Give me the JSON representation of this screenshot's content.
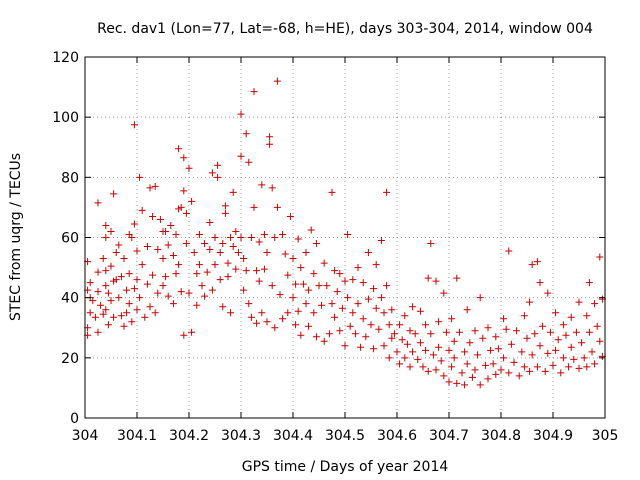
{
  "chart_data": {
    "type": "scatter",
    "title": "Rec. dav1 (Lon=77, Lat=-68, h=HE), days 303-304, 2014, window 004",
    "xlabel": "GPS time / Days of year 2014",
    "ylabel": "STEC from uqrg / TECUs",
    "xlim": [
      304,
      305
    ],
    "ylim": [
      0,
      120
    ],
    "x_ticks": [
      304,
      304.1,
      304.2,
      304.3,
      304.4,
      304.5,
      304.6,
      304.7,
      304.8,
      304.9,
      305
    ],
    "x_tick_labels": [
      "304",
      "304.1",
      "304.2",
      "304.3",
      "304.4",
      "304.5",
      "304.6",
      "304.7",
      "304.8",
      "304.9",
      "305"
    ],
    "y_ticks": [
      0,
      20,
      40,
      60,
      80,
      100,
      120
    ],
    "y_tick_labels": [
      "0",
      "20",
      "40",
      "60",
      "80",
      "100",
      "120"
    ],
    "marker": "plus",
    "marker_color": "#cc0000",
    "grid": true,
    "points": [
      [
        304.005,
        52.0
      ],
      [
        304.005,
        42.5
      ],
      [
        304.005,
        30.0
      ],
      [
        304.005,
        27.5
      ],
      [
        304.01,
        45.0
      ],
      [
        304.01,
        40.0
      ],
      [
        304.01,
        35.0
      ],
      [
        304.015,
        39.0
      ],
      [
        304.02,
        33.5
      ],
      [
        304.025,
        71.5
      ],
      [
        304.025,
        48.5
      ],
      [
        304.025,
        42.0
      ],
      [
        304.025,
        28.5
      ],
      [
        304.03,
        37.5
      ],
      [
        304.035,
        53.0
      ],
      [
        304.035,
        34.5
      ],
      [
        304.04,
        64.0
      ],
      [
        304.04,
        60.0
      ],
      [
        304.04,
        49.0
      ],
      [
        304.04,
        44.0
      ],
      [
        304.04,
        36.0
      ],
      [
        304.045,
        41.5
      ],
      [
        304.045,
        31.0
      ],
      [
        304.05,
        62.0
      ],
      [
        304.05,
        50.5
      ],
      [
        304.05,
        39.0
      ],
      [
        304.055,
        74.5
      ],
      [
        304.055,
        45.5
      ],
      [
        304.055,
        33.5
      ],
      [
        304.06,
        55.0
      ],
      [
        304.06,
        46.0
      ],
      [
        304.065,
        57.5
      ],
      [
        304.065,
        40.0
      ],
      [
        304.07,
        47.0
      ],
      [
        304.07,
        34.0
      ],
      [
        304.075,
        53.0
      ],
      [
        304.075,
        30.5
      ],
      [
        304.08,
        42.5
      ],
      [
        304.08,
        35.0
      ],
      [
        304.085,
        61.0
      ],
      [
        304.085,
        48.0
      ],
      [
        304.085,
        38.0
      ],
      [
        304.09,
        60.0
      ],
      [
        304.09,
        32.0
      ],
      [
        304.095,
        97.5
      ],
      [
        304.095,
        64.5
      ],
      [
        304.095,
        43.0
      ],
      [
        304.1,
        55.5
      ],
      [
        304.1,
        46.0
      ],
      [
        304.1,
        36.0
      ],
      [
        304.105,
        80.0
      ],
      [
        304.105,
        40.0
      ],
      [
        304.11,
        69.0
      ],
      [
        304.11,
        51.0
      ],
      [
        304.115,
        33.5
      ],
      [
        304.12,
        57.0
      ],
      [
        304.12,
        44.5
      ],
      [
        304.125,
        76.5
      ],
      [
        304.125,
        37.0
      ],
      [
        304.13,
        67.0
      ],
      [
        304.13,
        47.5
      ],
      [
        304.135,
        77.0
      ],
      [
        304.135,
        35.0
      ],
      [
        304.14,
        56.0
      ],
      [
        304.14,
        41.5
      ],
      [
        304.145,
        66.0
      ],
      [
        304.15,
        62.0
      ],
      [
        304.15,
        53.0
      ],
      [
        304.15,
        44.0
      ],
      [
        304.155,
        62.0
      ],
      [
        304.155,
        47.0
      ],
      [
        304.16,
        57.5
      ],
      [
        304.16,
        40.5
      ],
      [
        304.165,
        64.0
      ],
      [
        304.17,
        54.0
      ],
      [
        304.17,
        38.0
      ],
      [
        304.175,
        61.0
      ],
      [
        304.175,
        48.0
      ],
      [
        304.18,
        89.5
      ],
      [
        304.18,
        69.5
      ],
      [
        304.18,
        51.0
      ],
      [
        304.185,
        70.0
      ],
      [
        304.185,
        42.0
      ],
      [
        304.19,
        86.5
      ],
      [
        304.19,
        75.5
      ],
      [
        304.19,
        27.5
      ],
      [
        304.195,
        68.0
      ],
      [
        304.195,
        58.0
      ],
      [
        304.2,
        83.0
      ],
      [
        304.2,
        41.5
      ],
      [
        304.205,
        72.0
      ],
      [
        304.205,
        28.5
      ],
      [
        304.21,
        55.0
      ],
      [
        304.215,
        48.0
      ],
      [
        304.215,
        37.5
      ],
      [
        304.22,
        61.0
      ],
      [
        304.22,
        51.0
      ],
      [
        304.225,
        44.0
      ],
      [
        304.23,
        58.0
      ],
      [
        304.23,
        40.5
      ],
      [
        304.235,
        48.5
      ],
      [
        304.24,
        65.0
      ],
      [
        304.24,
        56.0
      ],
      [
        304.245,
        81.5
      ],
      [
        304.245,
        42.5
      ],
      [
        304.25,
        60.0
      ],
      [
        304.25,
        51.0
      ],
      [
        304.255,
        80.0
      ],
      [
        304.255,
        84.0
      ],
      [
        304.26,
        55.0
      ],
      [
        304.26,
        46.0
      ],
      [
        304.265,
        58.0
      ],
      [
        304.265,
        37.0
      ],
      [
        304.27,
        70.5
      ],
      [
        304.27,
        68.0
      ],
      [
        304.275,
        51.5
      ],
      [
        304.275,
        47.0
      ],
      [
        304.28,
        60.0
      ],
      [
        304.28,
        35.0
      ],
      [
        304.285,
        75.0
      ],
      [
        304.285,
        57.0
      ],
      [
        304.29,
        62.0
      ],
      [
        304.29,
        49.5
      ],
      [
        304.295,
        55.0
      ],
      [
        304.3,
        101.0
      ],
      [
        304.3,
        87.0
      ],
      [
        304.3,
        60.0
      ],
      [
        304.305,
        53.0
      ],
      [
        304.305,
        42.5
      ],
      [
        304.31,
        94.5
      ],
      [
        304.31,
        49.0
      ],
      [
        304.315,
        85.0
      ],
      [
        304.315,
        38.0
      ],
      [
        304.32,
        60.0
      ],
      [
        304.32,
        33.5
      ],
      [
        304.325,
        108.5
      ],
      [
        304.325,
        70.0
      ],
      [
        304.33,
        49.0
      ],
      [
        304.33,
        31.5
      ],
      [
        304.335,
        58.5
      ],
      [
        304.335,
        45.5
      ],
      [
        304.34,
        77.5
      ],
      [
        304.34,
        35.0
      ],
      [
        304.345,
        61.0
      ],
      [
        304.345,
        49.5
      ],
      [
        304.35,
        55.0
      ],
      [
        304.35,
        32.0
      ],
      [
        304.355,
        93.5
      ],
      [
        304.355,
        91.0
      ],
      [
        304.36,
        76.5
      ],
      [
        304.36,
        44.0
      ],
      [
        304.365,
        60.0
      ],
      [
        304.365,
        30.0
      ],
      [
        304.37,
        112.0
      ],
      [
        304.37,
        70.0
      ],
      [
        304.375,
        41.0
      ],
      [
        304.38,
        61.0
      ],
      [
        304.38,
        33.0
      ],
      [
        304.385,
        54.5
      ],
      [
        304.39,
        47.5
      ],
      [
        304.39,
        35.0
      ],
      [
        304.395,
        67.0
      ],
      [
        304.4,
        53.0
      ],
      [
        304.4,
        40.0
      ],
      [
        304.405,
        44.5
      ],
      [
        304.405,
        31.0
      ],
      [
        304.41,
        59.5
      ],
      [
        304.41,
        35.5
      ],
      [
        304.415,
        50.0
      ],
      [
        304.415,
        27.5
      ],
      [
        304.42,
        44.5
      ],
      [
        304.425,
        55.0
      ],
      [
        304.425,
        38.0
      ],
      [
        304.43,
        42.5
      ],
      [
        304.43,
        30.5
      ],
      [
        304.435,
        62.5
      ],
      [
        304.44,
        48.0
      ],
      [
        304.44,
        35.0
      ],
      [
        304.445,
        58.0
      ],
      [
        304.445,
        27.0
      ],
      [
        304.45,
        44.0
      ],
      [
        304.455,
        37.5
      ],
      [
        304.46,
        51.5
      ],
      [
        304.46,
        25.5
      ],
      [
        304.465,
        44.0
      ],
      [
        304.47,
        28.0
      ],
      [
        304.475,
        38.0
      ],
      [
        304.475,
        75.0
      ],
      [
        304.48,
        49.0
      ],
      [
        304.48,
        33.5
      ],
      [
        304.485,
        42.0
      ],
      [
        304.49,
        48.0
      ],
      [
        304.49,
        29.0
      ],
      [
        304.495,
        36.5
      ],
      [
        304.5,
        45.5
      ],
      [
        304.5,
        24.0
      ],
      [
        304.505,
        61.0
      ],
      [
        304.505,
        40.0
      ],
      [
        304.51,
        30.5
      ],
      [
        304.515,
        46.0
      ],
      [
        304.515,
        35.0
      ],
      [
        304.52,
        28.0
      ],
      [
        304.525,
        50.0
      ],
      [
        304.525,
        38.0
      ],
      [
        304.53,
        23.5
      ],
      [
        304.535,
        45.0
      ],
      [
        304.535,
        33.0
      ],
      [
        304.54,
        27.0
      ],
      [
        304.545,
        55.0
      ],
      [
        304.545,
        39.5
      ],
      [
        304.55,
        31.0
      ],
      [
        304.555,
        43.0
      ],
      [
        304.555,
        23.0
      ],
      [
        304.56,
        36.5
      ],
      [
        304.56,
        51.0
      ],
      [
        304.565,
        29.5
      ],
      [
        304.57,
        59.0
      ],
      [
        304.57,
        40.0
      ],
      [
        304.575,
        35.0
      ],
      [
        304.575,
        24.0
      ],
      [
        304.58,
        75.0
      ],
      [
        304.58,
        44.0
      ],
      [
        304.585,
        31.0
      ],
      [
        304.585,
        20.0
      ],
      [
        304.59,
        36.0
      ],
      [
        304.59,
        26.5
      ],
      [
        304.595,
        28.0
      ],
      [
        304.6,
        22.0
      ],
      [
        304.605,
        31.0
      ],
      [
        304.605,
        18.0
      ],
      [
        304.61,
        26.0
      ],
      [
        304.615,
        34.0
      ],
      [
        304.615,
        20.0
      ],
      [
        304.62,
        24.5
      ],
      [
        304.625,
        29.0
      ],
      [
        304.625,
        17.0
      ],
      [
        304.63,
        37.0
      ],
      [
        304.63,
        22.0
      ],
      [
        304.635,
        28.0
      ],
      [
        304.64,
        19.5
      ],
      [
        304.645,
        35.5
      ],
      [
        304.645,
        25.0
      ],
      [
        304.65,
        17.0
      ],
      [
        304.655,
        31.0
      ],
      [
        304.655,
        22.5
      ],
      [
        304.66,
        46.5
      ],
      [
        304.66,
        15.5
      ],
      [
        304.665,
        28.0
      ],
      [
        304.665,
        58.0
      ],
      [
        304.67,
        21.0
      ],
      [
        304.675,
        45.5
      ],
      [
        304.675,
        16.0
      ],
      [
        304.68,
        32.0
      ],
      [
        304.68,
        23.5
      ],
      [
        304.685,
        19.0
      ],
      [
        304.69,
        41.5
      ],
      [
        304.69,
        14.0
      ],
      [
        304.695,
        28.5
      ],
      [
        304.7,
        22.5
      ],
      [
        304.7,
        12.0
      ],
      [
        304.705,
        33.0
      ],
      [
        304.705,
        17.0
      ],
      [
        304.71,
        25.5
      ],
      [
        304.71,
        20.0
      ],
      [
        304.715,
        46.5
      ],
      [
        304.715,
        11.5
      ],
      [
        304.72,
        28.5
      ],
      [
        304.725,
        15.0
      ],
      [
        304.73,
        22.0
      ],
      [
        304.73,
        11.0
      ],
      [
        304.735,
        36.0
      ],
      [
        304.735,
        18.0
      ],
      [
        304.74,
        25.0
      ],
      [
        304.745,
        13.5
      ],
      [
        304.75,
        29.0
      ],
      [
        304.75,
        16.0
      ],
      [
        304.755,
        21.0
      ],
      [
        304.76,
        40.0
      ],
      [
        304.76,
        11.0
      ],
      [
        304.765,
        26.5
      ],
      [
        304.77,
        17.5
      ],
      [
        304.775,
        30.0
      ],
      [
        304.775,
        13.0
      ],
      [
        304.78,
        22.5
      ],
      [
        304.785,
        18.0
      ],
      [
        304.79,
        27.0
      ],
      [
        304.79,
        14.5
      ],
      [
        304.795,
        23.0
      ],
      [
        304.8,
        16.0
      ],
      [
        304.805,
        33.0
      ],
      [
        304.805,
        20.0
      ],
      [
        304.81,
        29.5
      ],
      [
        304.815,
        55.5
      ],
      [
        304.815,
        15.0
      ],
      [
        304.82,
        24.5
      ],
      [
        304.825,
        18.5
      ],
      [
        304.83,
        29.0
      ],
      [
        304.835,
        14.0
      ],
      [
        304.84,
        22.0
      ],
      [
        304.845,
        34.0
      ],
      [
        304.845,
        17.0
      ],
      [
        304.85,
        26.5
      ],
      [
        304.855,
        38.5
      ],
      [
        304.855,
        15.5
      ],
      [
        304.86,
        51.0
      ],
      [
        304.86,
        21.0
      ],
      [
        304.865,
        28.0
      ],
      [
        304.87,
        52.0
      ],
      [
        304.87,
        17.0
      ],
      [
        304.875,
        45.0
      ],
      [
        304.875,
        24.0
      ],
      [
        304.88,
        30.5
      ],
      [
        304.885,
        15.5
      ],
      [
        304.89,
        41.5
      ],
      [
        304.89,
        21.5
      ],
      [
        304.895,
        28.5
      ],
      [
        304.9,
        17.5
      ],
      [
        304.905,
        35.0
      ],
      [
        304.905,
        22.5
      ],
      [
        304.91,
        26.0
      ],
      [
        304.915,
        15.0
      ],
      [
        304.92,
        31.0
      ],
      [
        304.92,
        20.0
      ],
      [
        304.925,
        27.5
      ],
      [
        304.93,
        17.0
      ],
      [
        304.935,
        33.5
      ],
      [
        304.935,
        23.5
      ],
      [
        304.94,
        19.5
      ],
      [
        304.945,
        28.5
      ],
      [
        304.95,
        38.5
      ],
      [
        304.95,
        16.5
      ],
      [
        304.955,
        25.0
      ],
      [
        304.96,
        20.0
      ],
      [
        304.965,
        34.0
      ],
      [
        304.965,
        17.0
      ],
      [
        304.97,
        45.0
      ],
      [
        304.97,
        28.5
      ],
      [
        304.975,
        22.0
      ],
      [
        304.98,
        38.0
      ],
      [
        304.98,
        18.0
      ],
      [
        304.985,
        30.5
      ],
      [
        304.99,
        53.5
      ],
      [
        304.99,
        25.5
      ],
      [
        304.995,
        39.5
      ],
      [
        304.995,
        20.5
      ]
    ]
  }
}
